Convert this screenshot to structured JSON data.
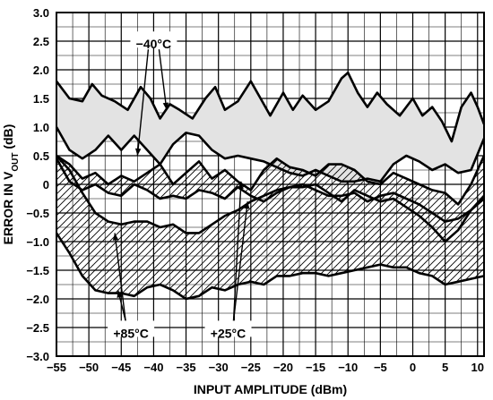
{
  "chart_data": {
    "type": "line",
    "title": "",
    "xlabel": "INPUT AMPLITUDE (dBm)",
    "ylabel": {
      "prefix": "ERROR IN V",
      "subscript": "OUT",
      "suffix": " (dB)"
    },
    "xlim": [
      -55,
      11
    ],
    "ylim": [
      -3.0,
      3.0
    ],
    "x_ticks": [
      -55,
      -50,
      -45,
      -40,
      -35,
      -30,
      -25,
      -20,
      -15,
      -10,
      -5,
      0,
      5,
      10
    ],
    "x_tick_labels": [
      "−55",
      "−50",
      "−45",
      "−40",
      "−35",
      "−30",
      "−25",
      "−20",
      "−15",
      "−10",
      "−5",
      "0",
      "5",
      "10"
    ],
    "y_ticks": [
      3.0,
      2.5,
      2.0,
      1.5,
      1.0,
      0.5,
      0,
      -0.5,
      -1.0,
      -1.5,
      -2.0,
      -2.5,
      -3.0
    ],
    "y_tick_labels": [
      "3.0",
      "2.5",
      "2.0",
      "1.5",
      "1.0",
      "0.5",
      "0",
      "−0.5",
      "−1.0",
      "−1.5",
      "−2.0",
      "−2.5",
      "−3.0"
    ],
    "x_minor_step": 2.5,
    "y_minor_step": 0.25,
    "grid": true,
    "bands": [
      {
        "label": "−40°C",
        "fill": "light-gray",
        "upper": [
          [
            -55,
            1.8
          ],
          [
            -53,
            1.5
          ],
          [
            -51,
            1.45
          ],
          [
            -49.5,
            1.75
          ],
          [
            -48,
            1.55
          ],
          [
            -46,
            1.45
          ],
          [
            -44,
            1.3
          ],
          [
            -42,
            1.7
          ],
          [
            -40.5,
            1.5
          ],
          [
            -39,
            1.15
          ],
          [
            -37.5,
            1.4
          ],
          [
            -36,
            1.3
          ],
          [
            -34,
            1.15
          ],
          [
            -32,
            1.5
          ],
          [
            -30.5,
            1.7
          ],
          [
            -29,
            1.3
          ],
          [
            -27,
            1.45
          ],
          [
            -25,
            1.8
          ],
          [
            -23.5,
            1.5
          ],
          [
            -22,
            1.2
          ],
          [
            -20,
            1.6
          ],
          [
            -18.5,
            1.3
          ],
          [
            -17,
            1.55
          ],
          [
            -15,
            1.3
          ],
          [
            -13,
            1.45
          ],
          [
            -11,
            1.85
          ],
          [
            -10,
            1.95
          ],
          [
            -8.5,
            1.6
          ],
          [
            -7,
            1.35
          ],
          [
            -5.5,
            1.6
          ],
          [
            -4,
            1.4
          ],
          [
            -2,
            1.2
          ],
          [
            0,
            1.5
          ],
          [
            1.5,
            1.2
          ],
          [
            3,
            1.35
          ],
          [
            4.5,
            1.1
          ],
          [
            6,
            0.75
          ],
          [
            7.5,
            1.35
          ],
          [
            9,
            1.6
          ],
          [
            10,
            1.35
          ],
          [
            11,
            1.05
          ]
        ],
        "lower": [
          [
            -55,
            1.0
          ],
          [
            -53,
            0.6
          ],
          [
            -51,
            0.45
          ],
          [
            -49,
            0.6
          ],
          [
            -47,
            0.85
          ],
          [
            -45,
            0.6
          ],
          [
            -43,
            0.85
          ],
          [
            -41,
            0.6
          ],
          [
            -39,
            0.35
          ],
          [
            -37,
            0.7
          ],
          [
            -35,
            0.9
          ],
          [
            -33,
            0.85
          ],
          [
            -31,
            0.6
          ],
          [
            -29,
            0.45
          ],
          [
            -27,
            0.5
          ],
          [
            -25,
            0.45
          ],
          [
            -23,
            0.4
          ],
          [
            -21,
            0.3
          ],
          [
            -19,
            0.2
          ],
          [
            -17,
            0.15
          ],
          [
            -15,
            0.25
          ],
          [
            -13,
            0.15
          ],
          [
            -11,
            0.05
          ],
          [
            -9,
            0.05
          ],
          [
            -7,
            0.1
          ],
          [
            -5,
            0.05
          ],
          [
            -3,
            0.35
          ],
          [
            -1,
            0.5
          ],
          [
            1,
            0.4
          ],
          [
            3,
            0.25
          ],
          [
            5,
            0.35
          ],
          [
            7,
            0.2
          ],
          [
            9,
            0.25
          ],
          [
            11,
            0.8
          ]
        ]
      },
      {
        "label": "+25°C",
        "fill": "hatched",
        "upper": [
          [
            -55,
            0.5
          ],
          [
            -53,
            0.35
          ],
          [
            -51,
            0.1
          ],
          [
            -49,
            0.2
          ],
          [
            -47,
            0.0
          ],
          [
            -45,
            0.15
          ],
          [
            -43,
            0.05
          ],
          [
            -41,
            0.2
          ],
          [
            -39,
            0.35
          ],
          [
            -37,
            0.0
          ],
          [
            -35,
            0.2
          ],
          [
            -33,
            0.4
          ],
          [
            -31,
            0.1
          ],
          [
            -29,
            0.25
          ],
          [
            -27,
            0.05
          ],
          [
            -25,
            -0.1
          ],
          [
            -23,
            0.25
          ],
          [
            -21,
            0.45
          ],
          [
            -19,
            0.3
          ],
          [
            -17,
            0.25
          ],
          [
            -15,
            0.15
          ],
          [
            -13,
            0.35
          ],
          [
            -11,
            0.35
          ],
          [
            -9,
            0.25
          ],
          [
            -7,
            0.05
          ],
          [
            -5,
            0.0
          ],
          [
            -3,
            0.2
          ],
          [
            -1,
            0.1
          ],
          [
            1,
            0.0
          ],
          [
            3,
            -0.1
          ],
          [
            5,
            -0.15
          ],
          [
            7,
            -0.35
          ],
          [
            9,
            0.0
          ],
          [
            11,
            0.5
          ]
        ],
        "lower": [
          [
            -55,
            0.45
          ],
          [
            -53,
            0.05
          ],
          [
            -51,
            -0.1
          ],
          [
            -49,
            0.0
          ],
          [
            -47,
            -0.15
          ],
          [
            -45,
            -0.2
          ],
          [
            -43,
            0.0
          ],
          [
            -41,
            -0.1
          ],
          [
            -39,
            -0.25
          ],
          [
            -37,
            -0.2
          ],
          [
            -35,
            -0.25
          ],
          [
            -33,
            -0.1
          ],
          [
            -31,
            -0.15
          ],
          [
            -29,
            -0.25
          ],
          [
            -27,
            -0.05
          ],
          [
            -25,
            -0.2
          ],
          [
            -23,
            -0.3
          ],
          [
            -21,
            -0.15
          ],
          [
            -19,
            -0.05
          ],
          [
            -17,
            -0.05
          ],
          [
            -15,
            0.0
          ],
          [
            -13,
            -0.15
          ],
          [
            -11,
            -0.3
          ],
          [
            -9,
            -0.1
          ],
          [
            -7,
            -0.2
          ],
          [
            -5,
            -0.3
          ],
          [
            -3,
            -0.25
          ],
          [
            -1,
            -0.4
          ],
          [
            1,
            -0.55
          ],
          [
            3,
            -0.75
          ],
          [
            5,
            -1.0
          ],
          [
            7,
            -0.8
          ],
          [
            9,
            -0.45
          ],
          [
            11,
            -0.25
          ]
        ]
      },
      {
        "label": "+85°C",
        "fill": "hatched",
        "upper": [
          [
            -55,
            0.5
          ],
          [
            -53,
            0.25
          ],
          [
            -51,
            -0.15
          ],
          [
            -49,
            -0.5
          ],
          [
            -47,
            -0.65
          ],
          [
            -45,
            -0.7
          ],
          [
            -43,
            -0.65
          ],
          [
            -41,
            -0.65
          ],
          [
            -39,
            -0.75
          ],
          [
            -37,
            -0.7
          ],
          [
            -35,
            -0.85
          ],
          [
            -33,
            -0.85
          ],
          [
            -31,
            -0.7
          ],
          [
            -29,
            -0.55
          ],
          [
            -27,
            -0.45
          ],
          [
            -25,
            -0.3
          ],
          [
            -23,
            -0.2
          ],
          [
            -21,
            -0.1
          ],
          [
            -19,
            -0.05
          ],
          [
            -17,
            0.0
          ],
          [
            -15,
            -0.1
          ],
          [
            -13,
            -0.2
          ],
          [
            -11,
            -0.2
          ],
          [
            -9,
            -0.15
          ],
          [
            -7,
            -0.3
          ],
          [
            -5,
            -0.2
          ],
          [
            -3,
            -0.15
          ],
          [
            -1,
            -0.25
          ],
          [
            1,
            -0.35
          ],
          [
            3,
            -0.5
          ],
          [
            5,
            -0.65
          ],
          [
            7,
            -0.6
          ],
          [
            9,
            -0.45
          ],
          [
            11,
            -0.2
          ]
        ],
        "lower": [
          [
            -55,
            -0.85
          ],
          [
            -53,
            -1.2
          ],
          [
            -51,
            -1.6
          ],
          [
            -49,
            -1.85
          ],
          [
            -47,
            -1.9
          ],
          [
            -45,
            -1.9
          ],
          [
            -43,
            -1.95
          ],
          [
            -41,
            -1.8
          ],
          [
            -39,
            -1.75
          ],
          [
            -37,
            -1.85
          ],
          [
            -35,
            -2.0
          ],
          [
            -33,
            -1.95
          ],
          [
            -31,
            -1.8
          ],
          [
            -29,
            -1.85
          ],
          [
            -27,
            -1.75
          ],
          [
            -25,
            -1.7
          ],
          [
            -23,
            -1.75
          ],
          [
            -21,
            -1.6
          ],
          [
            -19,
            -1.6
          ],
          [
            -17,
            -1.55
          ],
          [
            -15,
            -1.55
          ],
          [
            -13,
            -1.6
          ],
          [
            -11,
            -1.55
          ],
          [
            -9,
            -1.5
          ],
          [
            -7,
            -1.45
          ],
          [
            -5,
            -1.4
          ],
          [
            -3,
            -1.45
          ],
          [
            -1,
            -1.45
          ],
          [
            1,
            -1.55
          ],
          [
            3,
            -1.6
          ],
          [
            5,
            -1.75
          ],
          [
            7,
            -1.7
          ],
          [
            9,
            -1.65
          ],
          [
            11,
            -1.6
          ]
        ]
      }
    ],
    "annotations": [
      {
        "text": "−40°C",
        "at": [
          -40,
          2.45
        ],
        "arrows": [
          [
            -42.5,
            0.5
          ],
          [
            -38,
            1.3
          ]
        ]
      },
      {
        "text": "+85°C",
        "at": [
          -43.5,
          -2.6
        ],
        "arrows": [
          [
            -46,
            -0.85
          ],
          [
            -45.5,
            -1.85
          ]
        ]
      },
      {
        "text": "+25°C",
        "at": [
          -28.5,
          -2.6
        ],
        "arrows": [
          [
            -26.5,
            0.05
          ],
          [
            -25.5,
            -0.3
          ]
        ]
      }
    ]
  }
}
